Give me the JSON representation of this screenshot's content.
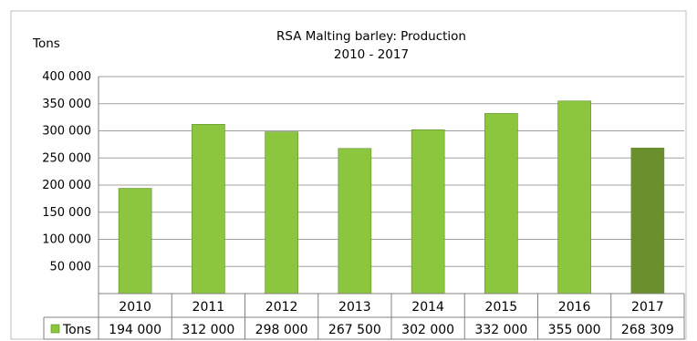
{
  "chart_data": {
    "type": "bar",
    "title": "RSA Malting barley: Production",
    "subtitle": "2010 - 2017",
    "ylabel": "Tons",
    "categories": [
      "2010",
      "2011",
      "2012",
      "2013",
      "2014",
      "2015",
      "2016",
      "2017"
    ],
    "series": [
      {
        "name": "Tons",
        "values": [
          194000,
          312000,
          298000,
          267500,
          302000,
          332000,
          355000,
          268309
        ],
        "value_labels": [
          "194 000",
          "312 000",
          "298 000",
          "267 500",
          "302 000",
          "332 000",
          "355 000",
          "268 309"
        ]
      }
    ],
    "ylim": [
      0,
      400000
    ],
    "yticks": [
      50000,
      100000,
      150000,
      200000,
      250000,
      300000,
      350000,
      400000
    ],
    "ytick_labels": [
      "50 000",
      "100 000",
      "150 000",
      "200 000",
      "250 000",
      "300 000",
      "350 000",
      "400 000"
    ],
    "grid": true,
    "data_table": true,
    "colors": {
      "bar": "#8cc63f",
      "bar_highlight": "#6b8e2f",
      "grid": "#a0a0a0",
      "axis": "#808080"
    },
    "highlight_index": 7
  }
}
